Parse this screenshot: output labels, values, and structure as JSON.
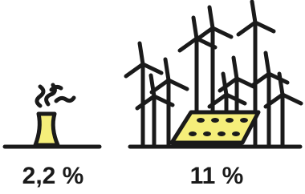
{
  "items": [
    {
      "label": "2,2 %"
    },
    {
      "label": "11 %"
    }
  ]
}
